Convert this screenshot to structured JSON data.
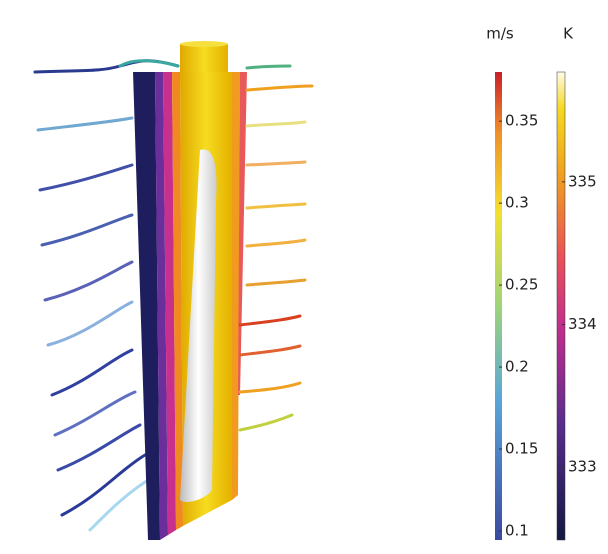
{
  "legends": [
    {
      "unit": "m/s",
      "range": [
        0.0945,
        0.38
      ],
      "ticks": [
        0.1,
        0.15,
        0.2,
        0.25,
        0.3,
        0.35
      ]
    },
    {
      "unit": "K",
      "range": [
        332.49,
        335.77
      ],
      "ticks": [
        333,
        334,
        335
      ]
    }
  ]
}
